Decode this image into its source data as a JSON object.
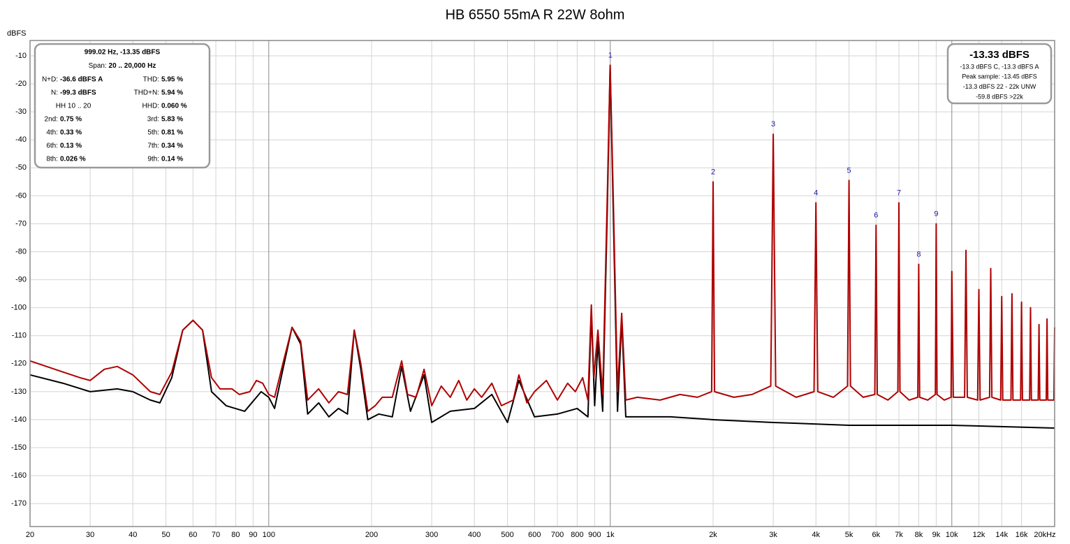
{
  "chart_data": {
    "type": "line",
    "title": "HB 6550 55mA R 22W 8ohm",
    "ylabel": "dBFS",
    "log_x": true,
    "grid": true,
    "xlim": [
      20,
      20000
    ],
    "ylim": [
      -178.2,
      -4.5
    ],
    "yticks": [
      -10,
      -20,
      -30,
      -40,
      -50,
      -60,
      -70,
      -80,
      -90,
      -100,
      -110,
      -120,
      -130,
      -140,
      -150,
      -160,
      -170
    ],
    "xticks": [
      20,
      30,
      40,
      50,
      60,
      70,
      80,
      90,
      100,
      200,
      300,
      400,
      500,
      600,
      700,
      800,
      900,
      {
        "value": 1000,
        "label": "1k"
      },
      {
        "value": 2000,
        "label": "2k"
      },
      {
        "value": 3000,
        "label": "3k"
      },
      {
        "value": 4000,
        "label": "4k"
      },
      {
        "value": 5000,
        "label": "5k"
      },
      {
        "value": 6000,
        "label": "6k"
      },
      {
        "value": 7000,
        "label": "7k"
      },
      {
        "value": 8000,
        "label": "8k"
      },
      {
        "value": 9000,
        "label": "9k"
      },
      {
        "value": 10000,
        "label": "10k"
      },
      {
        "value": 12000,
        "label": "12k"
      },
      {
        "value": 14000,
        "label": "14k"
      },
      {
        "value": 16000,
        "label": "16k"
      },
      {
        "value": 20000,
        "label": "20kHz"
      }
    ],
    "series": [
      {
        "name": "Black trace",
        "color": "#000000",
        "x": [
          20,
          25,
          30,
          36,
          40,
          45,
          48,
          52,
          56,
          60,
          64,
          68,
          75,
          85,
          95,
          100,
          104,
          110,
          117,
          124,
          130,
          140,
          150,
          160,
          170,
          178,
          186,
          195,
          210,
          230,
          245,
          260,
          285,
          300,
          340,
          400,
          450,
          500,
          540,
          600,
          700,
          800,
          860,
          880,
          900,
          920,
          950,
          980,
          999,
          1020,
          1050,
          1080,
          1110,
          1500,
          2000,
          3000,
          5000,
          10000,
          20000
        ],
        "values": [
          -124,
          -127,
          -130,
          -129,
          -130,
          -133,
          -134,
          -125,
          -108,
          -104.5,
          -108,
          -130,
          -135,
          -137,
          -130,
          -132,
          -136,
          -122,
          -107,
          -113,
          -138,
          -134,
          -139,
          -136,
          -138,
          -108,
          -122,
          -140,
          -138,
          -139,
          -121,
          -137,
          -124,
          -141,
          -137,
          -136,
          -131,
          -141,
          -126,
          -139,
          -138,
          -136,
          -139,
          -102,
          -135,
          -112,
          -137,
          -65,
          -13.35,
          -65,
          -137,
          -104,
          -139,
          -139,
          -140,
          -141,
          -142,
          -142,
          -143
        ]
      },
      {
        "name": "Red trace",
        "color": "#b00000",
        "x": [
          20,
          25,
          28,
          30,
          33,
          36,
          40,
          45,
          48,
          52,
          56,
          60,
          64,
          68,
          72,
          78,
          82,
          88,
          92,
          96,
          100,
          104,
          110,
          117,
          124,
          130,
          140,
          150,
          160,
          170,
          178,
          186,
          195,
          205,
          215,
          230,
          245,
          255,
          270,
          285,
          300,
          320,
          340,
          360,
          380,
          400,
          420,
          450,
          480,
          520,
          540,
          570,
          600,
          650,
          700,
          750,
          790,
          830,
          860,
          880,
          895,
          920,
          950,
          980,
          999,
          1020,
          1050,
          1080,
          1110,
          1200,
          1400,
          1600,
          1800,
          1980,
          2000,
          2020,
          2300,
          2600,
          2950,
          3000,
          3050,
          3500,
          3950,
          4000,
          4050,
          4500,
          4950,
          5000,
          5050,
          5500,
          5950,
          6000,
          6050,
          6500,
          6950,
          7000,
          7050,
          7500,
          7950,
          8000,
          8050,
          8500,
          8950,
          9000,
          9050,
          9500,
          9950,
          10000,
          10100,
          10900,
          11000,
          11100,
          11900,
          12000,
          12100,
          12900,
          13000,
          13100,
          13900,
          14000,
          14100,
          14900,
          15000,
          15100,
          15900,
          16000,
          16100,
          16900,
          17000,
          17100,
          17900,
          18000,
          18100,
          18900,
          19000,
          19100,
          19900,
          20000
        ],
        "values": [
          -119,
          -123,
          -125,
          -126,
          -122,
          -121,
          -124,
          -130,
          -131,
          -123,
          -108,
          -104.5,
          -108,
          -125,
          -129,
          -129,
          -131,
          -130,
          -126,
          -127,
          -131,
          -132,
          -120,
          -107,
          -112,
          -133,
          -129,
          -134,
          -130,
          -131,
          -108,
          -120,
          -137,
          -135,
          -132,
          -132,
          -119,
          -131,
          -132,
          -122,
          -135,
          -128,
          -132,
          -126,
          -133,
          -129,
          -132,
          -127,
          -135,
          -133,
          -124,
          -134,
          -130,
          -126,
          -133,
          -127,
          -130,
          -125,
          -133,
          -99,
          -125,
          -108,
          -131,
          -60,
          -13.35,
          -60,
          -130,
          -102,
          -133,
          -132,
          -133,
          -131,
          -132,
          -130,
          -55,
          -130,
          -132,
          -131,
          -128,
          -38,
          -128,
          -132,
          -130,
          -62.5,
          -130,
          -132,
          -128,
          -54.5,
          -128,
          -132,
          -131,
          -70.5,
          -131,
          -133,
          -130,
          -62.5,
          -130,
          -133,
          -132,
          -84.5,
          -132,
          -133,
          -131,
          -70,
          -131,
          -133,
          -132,
          -87,
          -132,
          -132,
          -79.5,
          -132,
          -133,
          -93.5,
          -133,
          -132,
          -86,
          -132,
          -133,
          -96,
          -133,
          -133,
          -95,
          -133,
          -133,
          -98,
          -133,
          -133,
          -100,
          -133,
          -133,
          -106,
          -133,
          -133,
          -104,
          -133,
          -133,
          -107
        ]
      }
    ],
    "harmonic_labels": [
      {
        "label": "1",
        "x": 1000,
        "y": -13.35
      },
      {
        "label": "2",
        "x": 2000,
        "y": -55
      },
      {
        "label": "3",
        "x": 3000,
        "y": -38
      },
      {
        "label": "4",
        "x": 4000,
        "y": -62.5
      },
      {
        "label": "5",
        "x": 5000,
        "y": -54.5
      },
      {
        "label": "6",
        "x": 6000,
        "y": -70.5
      },
      {
        "label": "7",
        "x": 7000,
        "y": -62.5
      },
      {
        "label": "8",
        "x": 8000,
        "y": -84.5
      },
      {
        "label": "9",
        "x": 9000,
        "y": -70
      }
    ],
    "info_box": {
      "heading": "999.02 Hz, -13.35 dBFS",
      "span_label": "Span:",
      "span_value": "20 .. 20,000 Hz",
      "rows": [
        {
          "l1": "N+D:",
          "v1": "-36.6 dBFS A",
          "l2": "THD:",
          "v2": "5.95 %"
        },
        {
          "l1": "N:",
          "v1": "-99.3 dBFS",
          "l2": "THD+N:",
          "v2": "5.94 %"
        },
        {
          "c1": "HH 10 .. 20",
          "l2": "HHD:",
          "v2": "0.060 %"
        },
        {
          "l1": "2nd:",
          "v1": "0.75 %",
          "l2": "3rd:",
          "v2": "5.83 %"
        },
        {
          "l1": "4th:",
          "v1": "0.33 %",
          "l2": "5th:",
          "v2": "0.81 %"
        },
        {
          "l1": "6th:",
          "v1": "0.13 %",
          "l2": "7th:",
          "v2": "0.34 %"
        },
        {
          "l1": "8th:",
          "v1": "0.026 %",
          "l2": "9th:",
          "v2": "0.14 %"
        }
      ]
    },
    "level_box": {
      "heading": "-13.33 dBFS",
      "lines": [
        "-13.3 dBFS C, -13.3 dBFS A",
        "Peak sample: -13.45 dBFS",
        "-13.3 dBFS 22 - 22k UNW",
        "-59.8 dBFS >22k"
      ]
    }
  }
}
